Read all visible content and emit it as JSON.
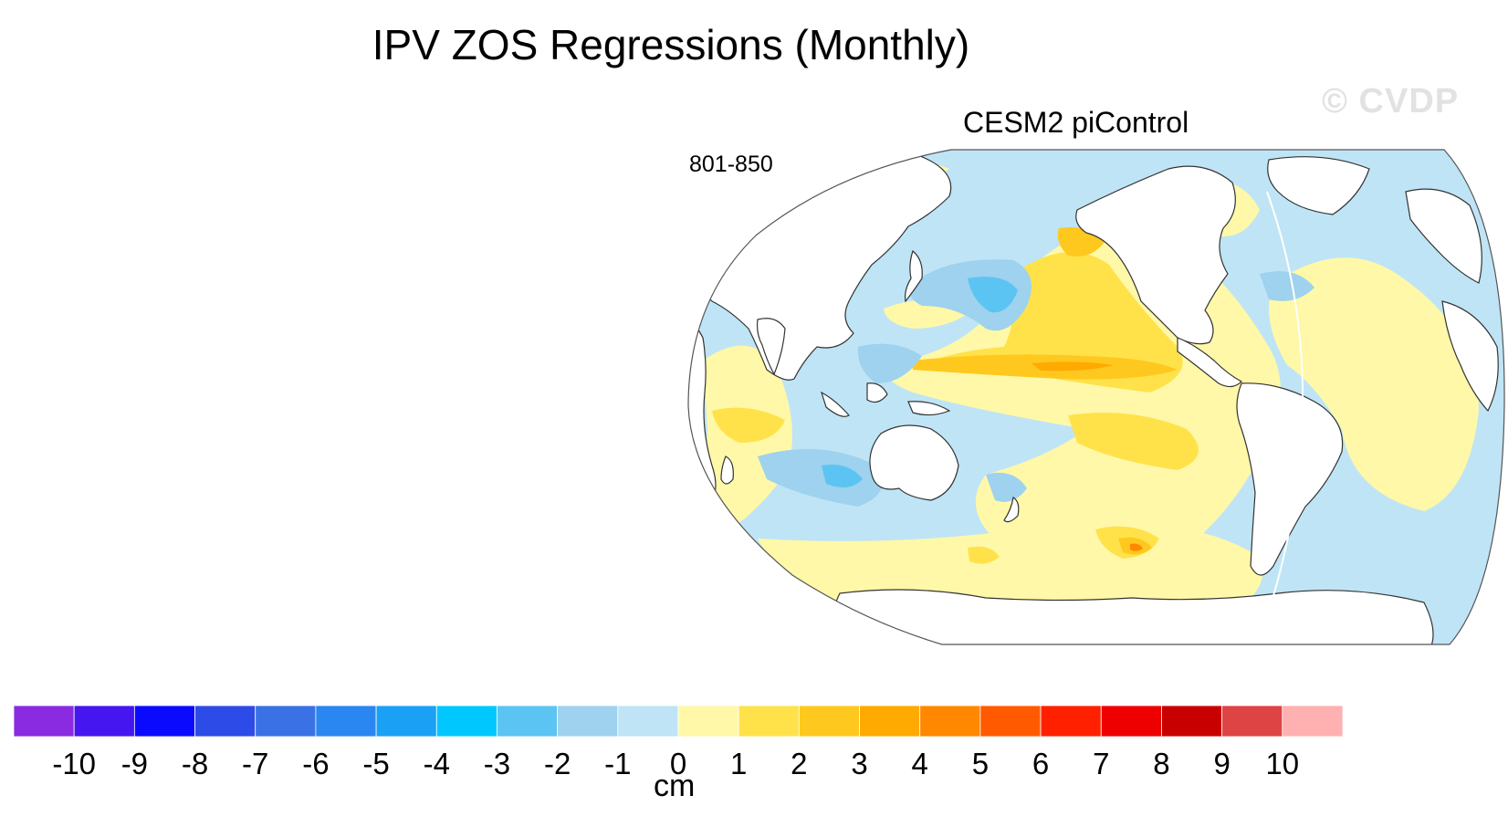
{
  "header": {
    "title": "IPV ZOS Regressions (Monthly)",
    "watermark": "© CVDP"
  },
  "panel": {
    "subtitle": "CESM2 piControl",
    "period": "801-850",
    "projection": "Robinson (Pacific-centered)",
    "variable": "ZOS regression onto IPV"
  },
  "colorbar": {
    "units": "cm",
    "labels": [
      "-10",
      "-9",
      "-8",
      "-7",
      "-6",
      "-5",
      "-4",
      "-3",
      "-2",
      "-1",
      "0",
      "1",
      "2",
      "3",
      "4",
      "5",
      "6",
      "7",
      "8",
      "9",
      "10"
    ],
    "colors": [
      "#8a2be2",
      "#4616f0",
      "#0a0aff",
      "#2d4be6",
      "#3a72e6",
      "#2a86f0",
      "#1aa0f5",
      "#00c8ff",
      "#5cc4f2",
      "#9ed2ee",
      "#bfe4f6",
      "#fff8a8",
      "#ffe24a",
      "#ffc81e",
      "#ffaa00",
      "#ff8800",
      "#ff5a00",
      "#ff2000",
      "#ee0000",
      "#c80000",
      "#de4444",
      "#ffb0b0"
    ]
  },
  "map_colors": {
    "land": "#ffffff",
    "coast": "#333333",
    "neg1": "#bfe4f6",
    "neg2": "#9ed2ee",
    "neg3": "#5cc4f2",
    "pos1": "#fff8a8",
    "pos2": "#ffe24a",
    "pos3": "#ffc81e",
    "pos4": "#ffaa00",
    "pos5": "#ff8800"
  }
}
